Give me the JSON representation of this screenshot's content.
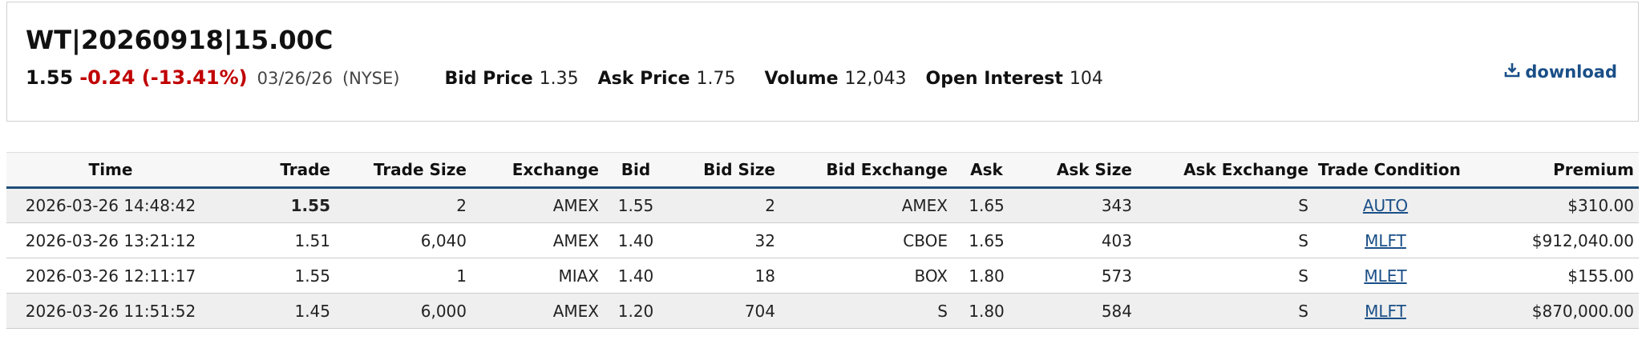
{
  "header": {
    "symbol": "WT|20260918|15.00C",
    "last_price": "1.55",
    "change": "-0.24 (-13.41%)",
    "date": "03/26/26",
    "exchange": "(NYSE)",
    "bid_label": "Bid Price",
    "bid_value": "1.35",
    "ask_label": "Ask Price",
    "ask_value": "1.75",
    "volume_label": "Volume",
    "volume_value": "12,043",
    "oi_label": "Open Interest",
    "oi_value": "104",
    "download_label": "download",
    "download_icon": "download-icon"
  },
  "colors": {
    "negative": "#c00000",
    "link": "#1a4f87",
    "header_rule": "#1f4e79",
    "row_alt": "#efefef"
  },
  "table": {
    "columns": [
      "Time",
      "Trade",
      "Trade Size",
      "Exchange",
      "Bid",
      "Bid Size",
      "Bid Exchange",
      "Ask",
      "Ask Size",
      "Ask Exchange",
      "Trade Condition",
      "Premium"
    ],
    "rows": [
      {
        "time": "2026-03-26 14:48:42",
        "trade": "1.55",
        "trade_size": "2",
        "exchange": "AMEX",
        "bid": "1.55",
        "bid_size": "2",
        "bid_exchange": "AMEX",
        "ask": "1.65",
        "ask_size": "343",
        "ask_exchange": "S",
        "condition": "AUTO",
        "premium": "$310.00"
      },
      {
        "time": "2026-03-26 13:21:12",
        "trade": "1.51",
        "trade_size": "6,040",
        "exchange": "AMEX",
        "bid": "1.40",
        "bid_size": "32",
        "bid_exchange": "CBOE",
        "ask": "1.65",
        "ask_size": "403",
        "ask_exchange": "S",
        "condition": "MLFT",
        "premium": "$912,040.00"
      },
      {
        "time": "2026-03-26 12:11:17",
        "trade": "1.55",
        "trade_size": "1",
        "exchange": "MIAX",
        "bid": "1.40",
        "bid_size": "18",
        "bid_exchange": "BOX",
        "ask": "1.80",
        "ask_size": "573",
        "ask_exchange": "S",
        "condition": "MLET",
        "premium": "$155.00"
      },
      {
        "time": "2026-03-26 11:51:52",
        "trade": "1.45",
        "trade_size": "6,000",
        "exchange": "AMEX",
        "bid": "1.20",
        "bid_size": "704",
        "bid_exchange": "S",
        "ask": "1.80",
        "ask_size": "584",
        "ask_exchange": "S",
        "condition": "MLFT",
        "premium": "$870,000.00"
      }
    ]
  }
}
